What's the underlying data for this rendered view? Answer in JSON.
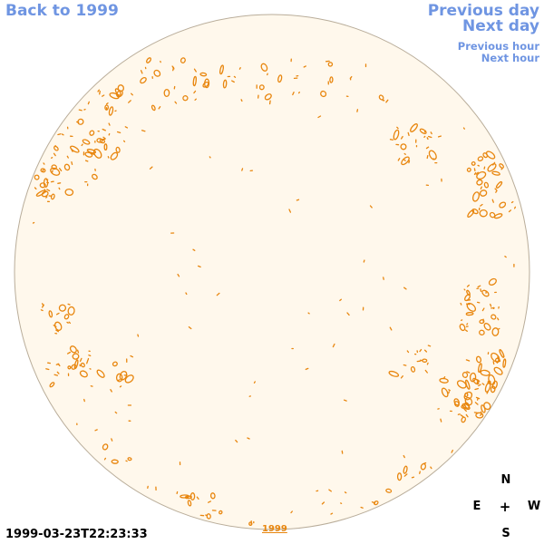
{
  "nav": {
    "back_label": "Back to 1999",
    "prev_day_label": "Previous day",
    "next_day_label": "Next day",
    "prev_hour_label": "Previous hour",
    "next_hour_label": "Next hour"
  },
  "timestamp": "1999-03-23T22:23:33",
  "year_link": "1999",
  "compass": {
    "north": "N",
    "east": "E",
    "center": "+",
    "west": "W",
    "south": "S"
  },
  "colors": {
    "link": "#6f95e2",
    "disk_fill": "#fff8ec",
    "disk_outline": "#b9ad9a",
    "magnetic_feature": "#e8860e"
  }
}
